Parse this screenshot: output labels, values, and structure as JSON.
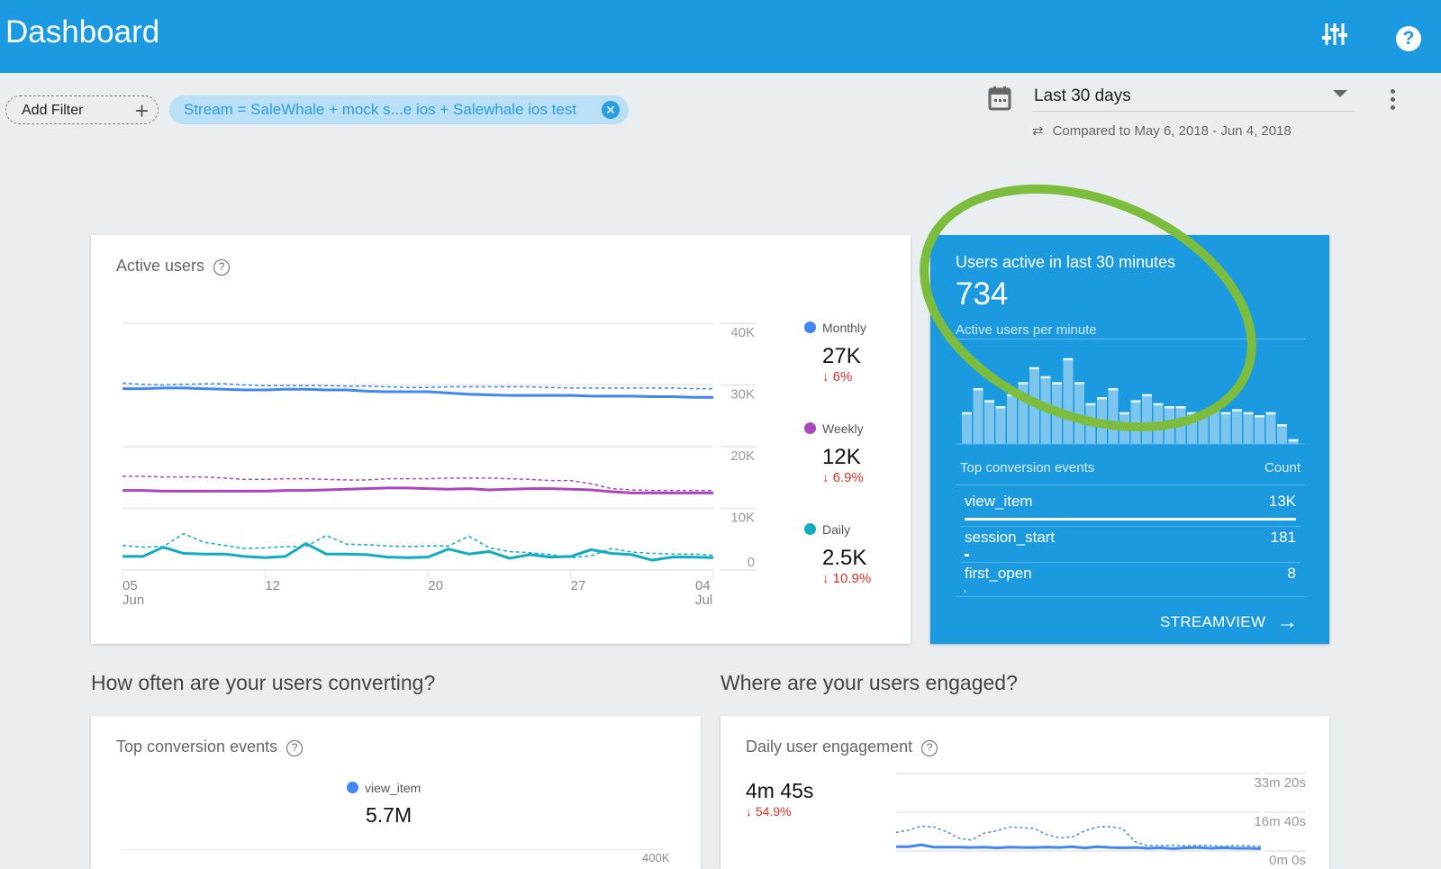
{
  "header": {
    "title": "Dashboard",
    "icons": [
      "tune-icon",
      "help-icon"
    ]
  },
  "filters": {
    "add_filter": "Add Filter",
    "stream_chip": "Stream = SaleWhale + mock s...e ios + Salewhale ios test"
  },
  "date_range": {
    "selected": "Last 30 days",
    "compare_text": "Compared to May 6, 2018 - Jun 4, 2018"
  },
  "active_users": {
    "title": "Active users",
    "legend": [
      {
        "name": "Monthly",
        "value": "27K",
        "delta": "↓ 6%",
        "color": "#4285f4"
      },
      {
        "name": "Weekly",
        "value": "12K",
        "delta": "↓ 6.9%",
        "color": "#ab47bc"
      },
      {
        "name": "Daily",
        "value": "2.5K",
        "delta": "↓ 10.9%",
        "color": "#12acc0"
      }
    ]
  },
  "chart_data": [
    {
      "type": "line",
      "title": "Active users",
      "x_ticks": [
        {
          "day": 0,
          "top": "05",
          "bottom": "Jun"
        },
        {
          "day": 7,
          "top": "12",
          "bottom": ""
        },
        {
          "day": 15,
          "top": "20",
          "bottom": ""
        },
        {
          "day": 22,
          "top": "27",
          "bottom": ""
        },
        {
          "day": 29,
          "top": "04",
          "bottom": "Jul"
        }
      ],
      "y_ticks": [
        "0",
        "10K",
        "20K",
        "30K",
        "40K"
      ],
      "ylim": [
        0,
        40000
      ],
      "series": [
        {
          "name": "Monthly",
          "color": "#4285f4",
          "dashed": false,
          "values": [
            29400,
            29400,
            29500,
            29500,
            29400,
            29300,
            29200,
            29200,
            29300,
            29300,
            29200,
            29200,
            29000,
            28900,
            28900,
            28900,
            28700,
            28500,
            28400,
            28300,
            28300,
            28300,
            28300,
            28200,
            28200,
            28200,
            28100,
            28100,
            28000,
            28000
          ]
        },
        {
          "name": "Monthly (previous)",
          "color": "#4285f4",
          "dashed": true,
          "values": [
            30300,
            30100,
            30000,
            30100,
            30200,
            30200,
            30000,
            29900,
            29900,
            29900,
            29900,
            29800,
            29800,
            29700,
            29600,
            29600,
            29700,
            29700,
            29700,
            29700,
            29700,
            29600,
            29500,
            29500,
            29500,
            29500,
            29500,
            29500,
            29400,
            29400
          ]
        },
        {
          "name": "Weekly",
          "color": "#ab47bc",
          "dashed": false,
          "values": [
            12900,
            12900,
            12800,
            12800,
            12800,
            12800,
            12800,
            12800,
            12900,
            12900,
            13000,
            13100,
            13200,
            13300,
            13300,
            13200,
            13100,
            13200,
            13000,
            13100,
            13200,
            13200,
            13100,
            13000,
            12700,
            12500,
            12500,
            12500,
            12500,
            12500
          ]
        },
        {
          "name": "Weekly (previous)",
          "color": "#ab47bc",
          "dashed": true,
          "values": [
            15200,
            15200,
            15100,
            15100,
            15100,
            14900,
            14700,
            14700,
            14800,
            14800,
            14700,
            14600,
            14600,
            14800,
            14800,
            14800,
            14900,
            14900,
            14900,
            14800,
            14700,
            14500,
            14500,
            14000,
            13200,
            13000,
            12900,
            12900,
            12900,
            12900
          ]
        },
        {
          "name": "Daily",
          "color": "#12acc0",
          "dashed": false,
          "values": [
            2200,
            2200,
            3700,
            2700,
            2600,
            2600,
            2200,
            2000,
            2200,
            4300,
            2600,
            2600,
            2500,
            2100,
            2000,
            2100,
            3400,
            2600,
            3000,
            1900,
            2500,
            2100,
            2200,
            3300,
            2700,
            2500,
            1600,
            2100,
            2100,
            2000
          ]
        },
        {
          "name": "Daily (previous)",
          "color": "#12acc0",
          "dashed": true,
          "values": [
            4000,
            3700,
            3800,
            5900,
            4500,
            4000,
            3500,
            3600,
            3800,
            3800,
            5600,
            4200,
            4100,
            3900,
            3800,
            3900,
            3900,
            5500,
            3600,
            3000,
            2800,
            2500,
            2000,
            2300,
            3500,
            2900,
            2700,
            2600,
            2600,
            2400
          ]
        }
      ]
    },
    {
      "type": "bar",
      "title": "Active users per minute",
      "ylim": [
        0,
        30
      ],
      "values": [
        10,
        18,
        14,
        12,
        16,
        20,
        25,
        22,
        20,
        28,
        20,
        13,
        15,
        18,
        10,
        14,
        16,
        13,
        12,
        12,
        10,
        9,
        12,
        10,
        11,
        10,
        9,
        10,
        6,
        1
      ]
    },
    {
      "type": "line",
      "title": "Daily user engagement",
      "y_ticks": [
        "0m 0s",
        "16m 40s",
        "33m 20s"
      ],
      "ylim": [
        0,
        2000
      ],
      "series": [
        {
          "name": "Current",
          "color": "#4285f4",
          "dashed": false,
          "values": [
            110,
            110,
            160,
            100,
            100,
            100,
            90,
            100,
            80,
            100,
            90,
            90,
            100,
            90,
            110,
            80,
            110,
            90,
            80,
            90,
            70,
            80,
            60,
            80,
            90,
            70,
            80,
            70,
            70,
            60
          ]
        },
        {
          "name": "Previous",
          "color": "#4285f4",
          "dashed": true,
          "values": [
            480,
            540,
            640,
            620,
            500,
            330,
            280,
            460,
            520,
            620,
            600,
            580,
            420,
            340,
            360,
            520,
            620,
            630,
            580,
            240,
            140,
            140,
            150,
            130,
            150,
            140,
            120,
            140,
            130,
            120
          ]
        }
      ]
    }
  ],
  "realtime": {
    "title": "Users active in last 30 minutes",
    "value": "734",
    "chart_label": "Active users per minute",
    "table_header": "Top conversion events",
    "count_header": "Count",
    "events": [
      {
        "name": "view_item",
        "count": "13K",
        "share": 1
      },
      {
        "name": "session_start",
        "count": "181",
        "share": 0.014
      },
      {
        "name": "first_open",
        "count": "8",
        "share": 0.001
      }
    ],
    "link": "STREAMVIEW",
    "highlight_color": "#7cbd3e"
  },
  "converting": {
    "heading": "How often are your users converting?",
    "card_title": "Top conversion events",
    "legend": "view_item",
    "value": "5.7M",
    "axis_label": "400K"
  },
  "engaged": {
    "heading": "Where are your users engaged?",
    "card_title": "Daily user engagement",
    "value": "4m 45s",
    "delta": "↓ 54.9%"
  }
}
